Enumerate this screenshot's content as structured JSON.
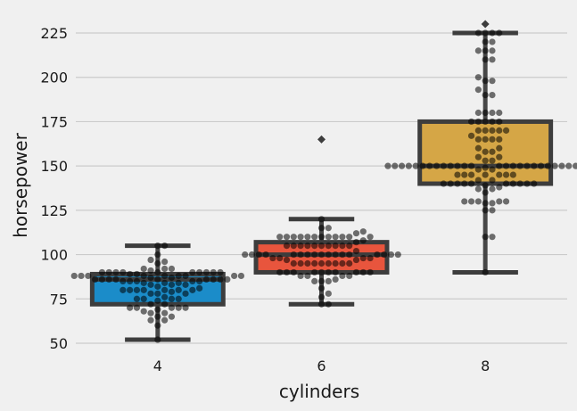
{
  "chart_data": {
    "type": "box",
    "title": "",
    "xlabel": "cylinders",
    "ylabel": "horsepower",
    "categories": [
      "4",
      "6",
      "8"
    ],
    "ylim": [
      45,
      232
    ],
    "yticks": [
      50,
      75,
      100,
      125,
      150,
      175,
      200,
      225
    ],
    "ytick_labels": [
      "50",
      "75",
      "100",
      "125",
      "150",
      "175",
      "200",
      "225"
    ],
    "grid": "horizontal",
    "box_colors": [
      "#1b8cc9",
      "#e8553d",
      "#d5a646"
    ],
    "point_color": "#000000",
    "boxes": [
      {
        "category": "4",
        "whisker_low": 52,
        "q1": 72,
        "median": 86,
        "q3": 89,
        "whisker_high": 105,
        "outliers": []
      },
      {
        "category": "6",
        "whisker_low": 72,
        "q1": 90,
        "median": 100,
        "q3": 107,
        "whisker_high": 120,
        "outliers": [
          165
        ]
      },
      {
        "category": "8",
        "whisker_low": 90,
        "q1": 140,
        "median": 150,
        "q3": 175,
        "whisker_high": 225,
        "outliers": [
          230
        ]
      }
    ],
    "points": [
      {
        "category": "4",
        "values": [
          52,
          60,
          63,
          63,
          65,
          65,
          67,
          67,
          68,
          69,
          70,
          70,
          70,
          70,
          70,
          72,
          72,
          74,
          75,
          75,
          75,
          75,
          76,
          78,
          78,
          78,
          79,
          80,
          80,
          80,
          80,
          80,
          80,
          80,
          81,
          82,
          83,
          83,
          83,
          84,
          84,
          84,
          85,
          85,
          85,
          85,
          85,
          86,
          86,
          86,
          86,
          86,
          86,
          86,
          86,
          86,
          87,
          87,
          88,
          88,
          88,
          88,
          88,
          88,
          88,
          88,
          88,
          89,
          89,
          90,
          90,
          90,
          90,
          90,
          90,
          90,
          90,
          90,
          90,
          91,
          92,
          92,
          92,
          95,
          96,
          97,
          100,
          105,
          105
        ]
      },
      {
        "category": "6",
        "values": [
          72,
          72,
          76,
          78,
          81,
          85,
          85,
          85,
          86,
          88,
          88,
          88,
          88,
          90,
          90,
          90,
          90,
          90,
          90,
          90,
          90,
          90,
          90,
          95,
          95,
          95,
          95,
          95,
          95,
          95,
          95,
          95,
          97,
          97,
          98,
          98,
          98,
          98,
          100,
          100,
          100,
          100,
          100,
          100,
          100,
          100,
          100,
          100,
          100,
          100,
          100,
          100,
          100,
          100,
          100,
          102,
          105,
          105,
          105,
          105,
          105,
          105,
          105,
          105,
          105,
          105,
          107,
          108,
          110,
          110,
          110,
          110,
          110,
          110,
          110,
          110,
          110,
          110,
          110,
          110,
          112,
          113,
          115,
          115,
          120
        ]
      },
      {
        "category": "8",
        "values": [
          90,
          110,
          110,
          125,
          125,
          129,
          129,
          130,
          130,
          130,
          130,
          130,
          135,
          137,
          137,
          138,
          139,
          140,
          140,
          140,
          140,
          140,
          140,
          140,
          140,
          140,
          140,
          142,
          142,
          145,
          145,
          145,
          145,
          145,
          145,
          145,
          148,
          148,
          149,
          150,
          150,
          150,
          150,
          150,
          150,
          150,
          150,
          150,
          150,
          150,
          150,
          150,
          150,
          150,
          150,
          150,
          150,
          150,
          150,
          150,
          150,
          150,
          150,
          150,
          150,
          153,
          153,
          155,
          155,
          158,
          158,
          160,
          160,
          165,
          165,
          165,
          165,
          167,
          170,
          170,
          170,
          170,
          170,
          175,
          175,
          175,
          175,
          175,
          180,
          180,
          180,
          180,
          190,
          190,
          193,
          198,
          198,
          200,
          210,
          210,
          215,
          215,
          215,
          220,
          220,
          225,
          225,
          225,
          225
        ]
      }
    ]
  }
}
